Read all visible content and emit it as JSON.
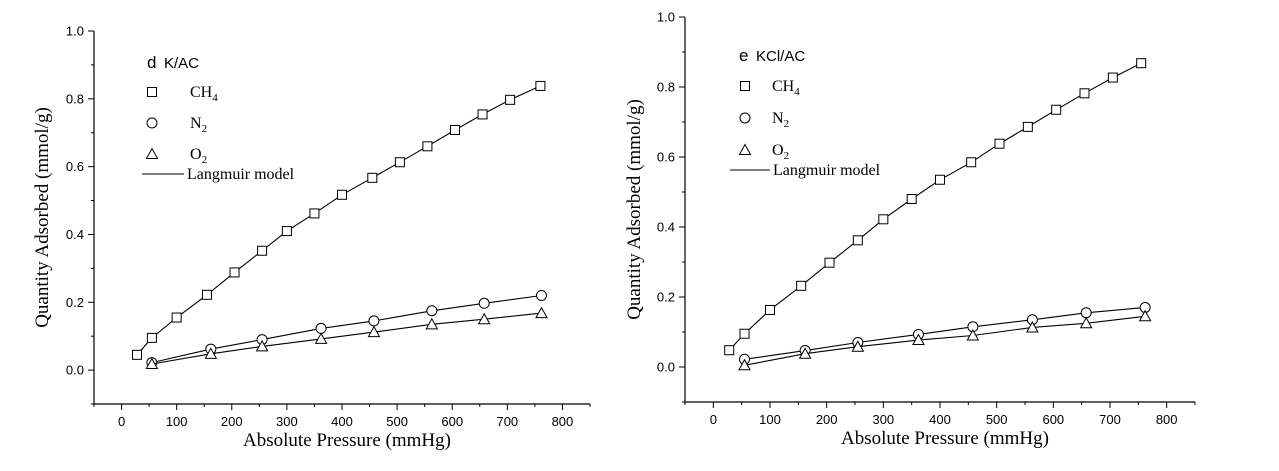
{
  "chart_data": [
    {
      "type": "scatter",
      "panel_label": "d",
      "sample": "K/AC",
      "xlabel": "Absolute Pressure (mmHg)",
      "ylabel": "Quantity Adsorbed (mmol/g)",
      "xlim": [
        -50,
        850
      ],
      "ylim": [
        -0.1,
        1.0
      ],
      "xticks": [
        0,
        100,
        200,
        300,
        400,
        500,
        600,
        700,
        800
      ],
      "yticks": [
        0.0,
        0.2,
        0.4,
        0.6,
        0.8,
        1.0
      ],
      "ytick_labels": [
        "0.0",
        "0.2",
        "0.4",
        "0.6",
        "0.8",
        "1.0"
      ],
      "legend_position": "top-left",
      "fit_legend": "Langmuir model",
      "series": [
        {
          "name": "CH",
          "subscript": "4",
          "marker": "square",
          "x": [
            28,
            55,
            100,
            155,
            205,
            255,
            300,
            350,
            400,
            455,
            505,
            555,
            605,
            655,
            705,
            760
          ],
          "y": [
            0.045,
            0.095,
            0.155,
            0.222,
            0.288,
            0.352,
            0.41,
            0.462,
            0.517,
            0.567,
            0.613,
            0.66,
            0.708,
            0.754,
            0.797,
            0.838
          ]
        },
        {
          "name": "N",
          "subscript": "2",
          "marker": "circle",
          "x": [
            55,
            162,
            255,
            362,
            458,
            563,
            658,
            762
          ],
          "y": [
            0.022,
            0.062,
            0.09,
            0.123,
            0.145,
            0.175,
            0.197,
            0.22
          ]
        },
        {
          "name": "O",
          "subscript": "2",
          "marker": "triangle",
          "x": [
            55,
            162,
            255,
            362,
            458,
            563,
            658,
            762
          ],
          "y": [
            0.018,
            0.048,
            0.07,
            0.092,
            0.112,
            0.135,
            0.15,
            0.168
          ]
        }
      ]
    },
    {
      "type": "scatter",
      "panel_label": "e",
      "sample": "KCl/AC",
      "xlabel": "Absolute Pressure (mmHg)",
      "ylabel": "Quantity Adsorbed (mmol/g)",
      "xlim": [
        -50,
        850
      ],
      "ylim": [
        -0.1,
        1.0
      ],
      "xticks": [
        0,
        100,
        200,
        300,
        400,
        500,
        600,
        700,
        800
      ],
      "yticks": [
        0.0,
        0.2,
        0.4,
        0.6,
        0.8,
        1.0
      ],
      "ytick_labels": [
        "0.0",
        "0.2",
        "0.4",
        "0.6",
        "0.8",
        "1.0"
      ],
      "legend_position": "top-left",
      "fit_legend": "Langmuir model",
      "series": [
        {
          "name": "CH",
          "subscript": "4",
          "marker": "square",
          "x": [
            28,
            55,
            100,
            155,
            205,
            255,
            300,
            350,
            400,
            455,
            505,
            555,
            605,
            655,
            705,
            755
          ],
          "y": [
            0.048,
            0.095,
            0.163,
            0.232,
            0.298,
            0.362,
            0.422,
            0.48,
            0.535,
            0.585,
            0.638,
            0.686,
            0.735,
            0.782,
            0.827,
            0.868
          ]
        },
        {
          "name": "N",
          "subscript": "2",
          "marker": "circle",
          "x": [
            55,
            162,
            255,
            362,
            458,
            563,
            658,
            762
          ],
          "y": [
            0.022,
            0.047,
            0.07,
            0.093,
            0.115,
            0.135,
            0.155,
            0.17
          ]
        },
        {
          "name": "O",
          "subscript": "2",
          "marker": "triangle",
          "x": [
            55,
            162,
            255,
            362,
            458,
            563,
            658,
            762
          ],
          "y": [
            0.005,
            0.038,
            0.058,
            0.077,
            0.09,
            0.113,
            0.125,
            0.145
          ]
        }
      ]
    }
  ]
}
